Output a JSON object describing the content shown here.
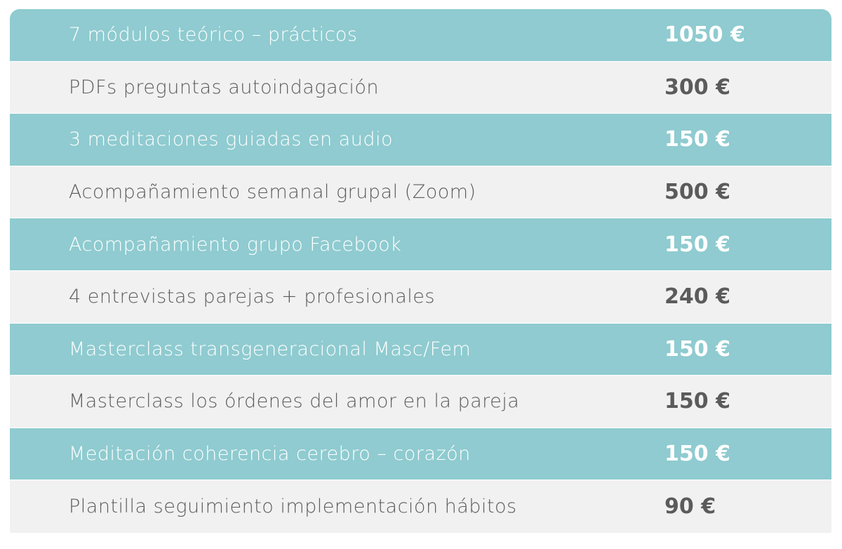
{
  "colors": {
    "teal": "#8fcbd0",
    "gray": "#f1f1f1",
    "text_dark": "#5b5b5b",
    "text_light": "#ffffff"
  },
  "rows": [
    {
      "label": "7 módulos teórico – prácticos",
      "price": "1050 €"
    },
    {
      "label": "PDFs preguntas autoindagación",
      "price": "300 €"
    },
    {
      "label": "3 meditaciones guiadas en audio",
      "price": "150 €"
    },
    {
      "label": "Acompañamiento semanal grupal (Zoom)",
      "price": "500 €"
    },
    {
      "label": "Acompañamiento grupo Facebook",
      "price": "150 €"
    },
    {
      "label": "4 entrevistas parejas + profesionales",
      "price": "240 €"
    },
    {
      "label": "Masterclass transgeneracional Masc/Fem",
      "price": "150 €"
    },
    {
      "label": "Masterclass los órdenes del amor en la pareja",
      "price": "150 €"
    },
    {
      "label": "Meditación coherencia cerebro – corazón",
      "price": "150 €"
    },
    {
      "label": "Plantilla seguimiento implementación hábitos",
      "price": "90 €"
    }
  ]
}
